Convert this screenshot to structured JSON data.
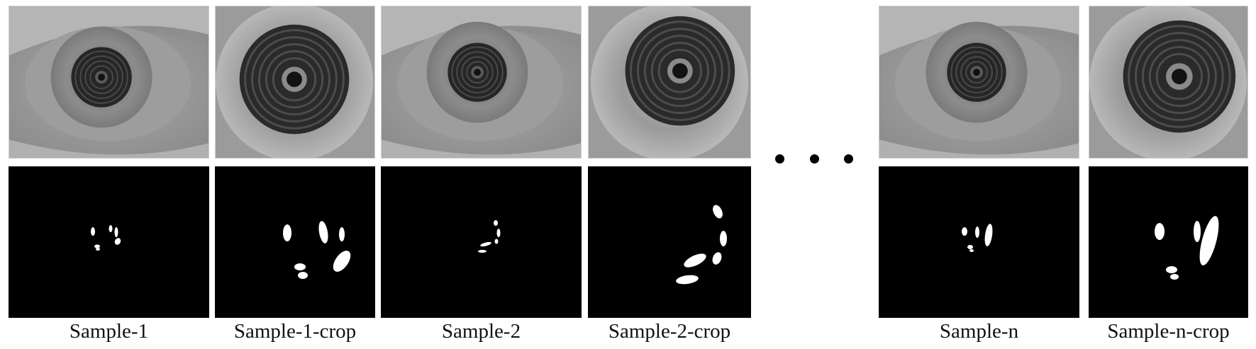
{
  "figure": {
    "captions": [
      "Sample-1",
      "Sample-1-crop",
      "Sample-2",
      "Sample-2-crop",
      "Sample-n",
      "Sample-n-crop"
    ],
    "ellipsis": "• • •"
  }
}
